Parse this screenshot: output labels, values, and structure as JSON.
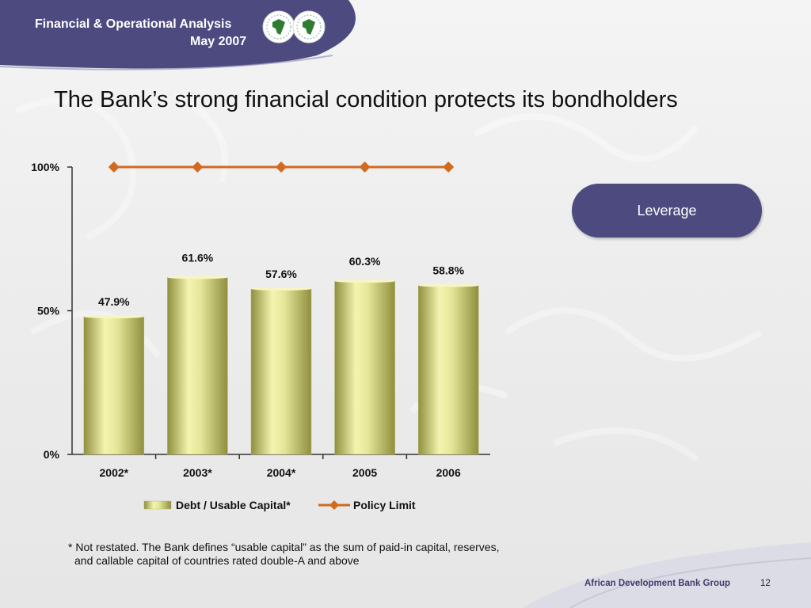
{
  "header": {
    "line1": "Financial & Operational Analysis",
    "line2": "May 2007"
  },
  "title": "The Bank’s strong financial condition protects its bondholders",
  "badge": "Leverage",
  "footnote": {
    "line1": "* Not restated. The Bank defines “usable capital” as the sum of paid-in capital, reserves,",
    "line2": "and callable capital of countries rated double-A and above"
  },
  "footer": {
    "org": "African Development Bank Group",
    "page": "12"
  },
  "colors": {
    "header_blue": "#4d4a80",
    "bar_light": "#f4f4b0",
    "bar_dark": "#8f8f3e",
    "policy_line": "#d2691e"
  },
  "chart_data": {
    "type": "bar",
    "categories": [
      "2002*",
      "2003*",
      "2004*",
      "2005",
      "2006"
    ],
    "series": [
      {
        "name": "Debt / Usable Capital*",
        "type": "bar",
        "values": [
          47.9,
          61.6,
          57.6,
          60.3,
          58.8
        ],
        "labels": [
          "47.9%",
          "61.6%",
          "57.6%",
          "60.3%",
          "58.8%"
        ]
      },
      {
        "name": "Policy Limit",
        "type": "line",
        "values": [
          100,
          100,
          100,
          100,
          100
        ]
      }
    ],
    "yticks": [
      "0%",
      "50%",
      "100%"
    ],
    "ylim": [
      0,
      100
    ],
    "legend": "bottom",
    "grid": false
  }
}
